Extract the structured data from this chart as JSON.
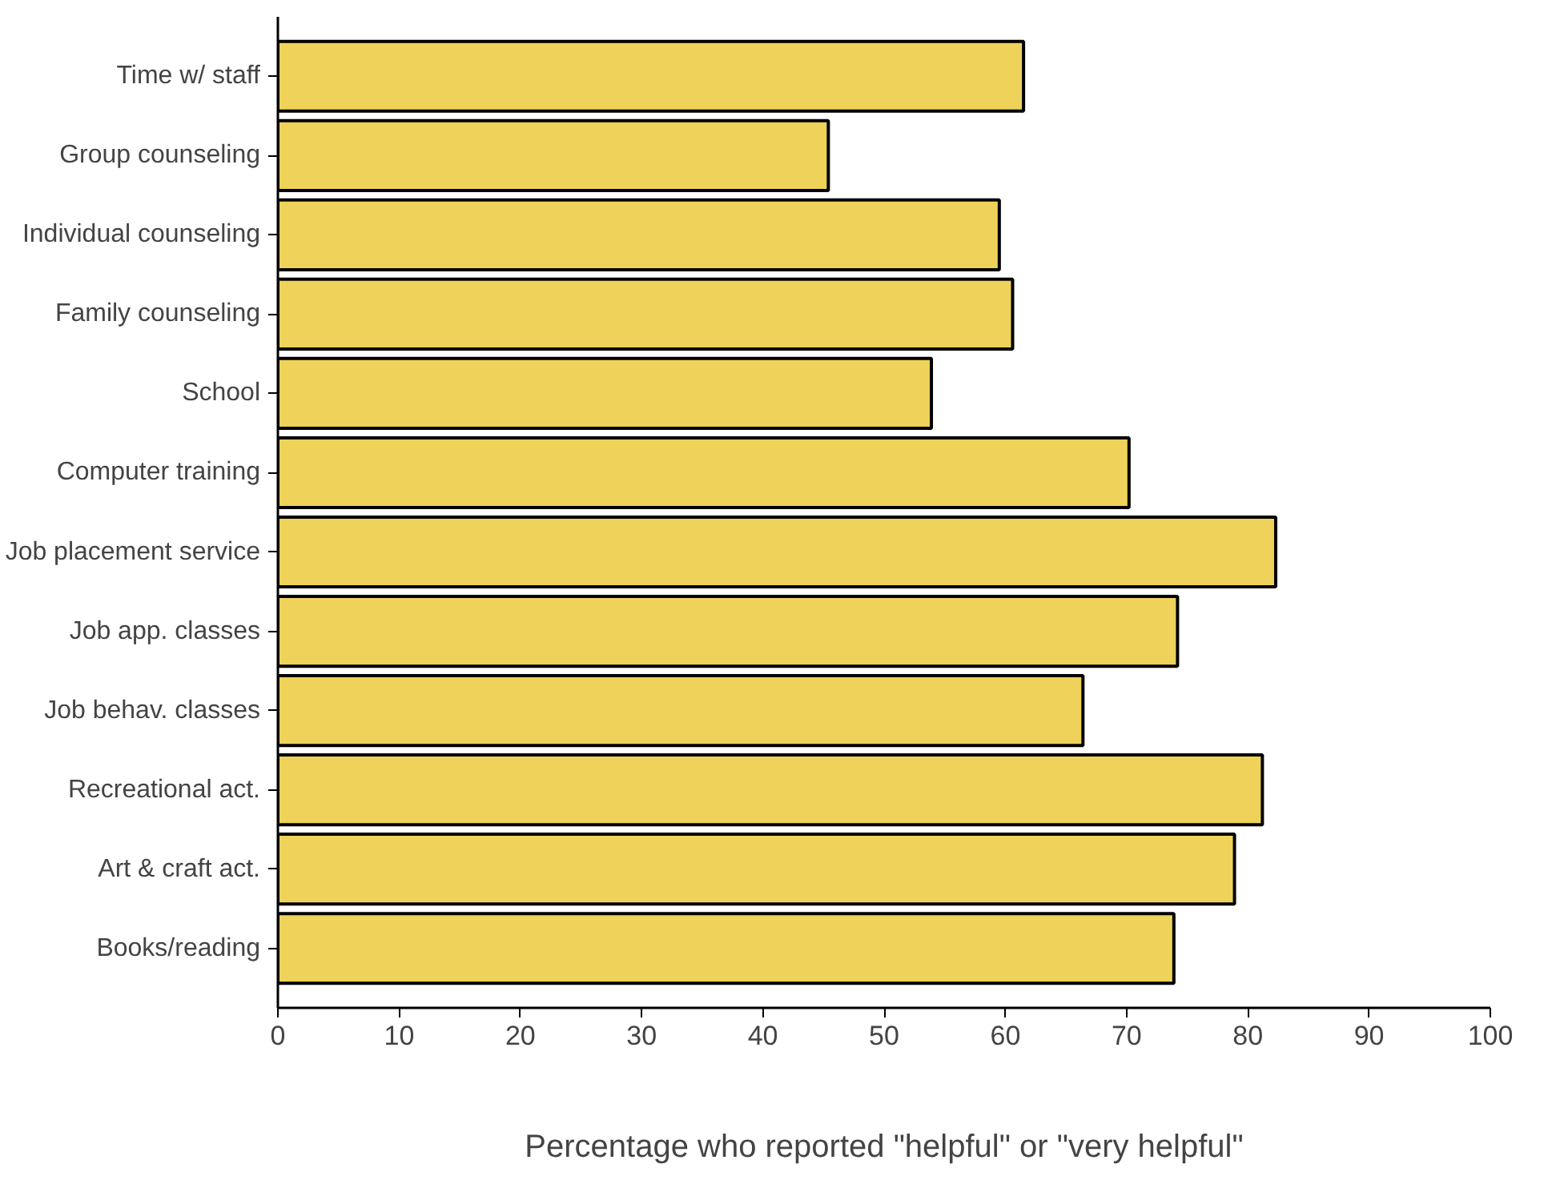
{
  "chart_data": {
    "type": "bar",
    "orientation": "horizontal",
    "xlabel": "Percentage who reported \"helpful\" or \"very helpful\"",
    "categories": [
      "Time w/ staff",
      "Group counseling",
      "Individual counseling",
      "Family counseling",
      "School",
      "Computer training",
      "Job placement service",
      "Job app. classes",
      "Job behav. classes",
      "Recreational act.",
      "Art & craft act.",
      "Books/reading"
    ],
    "values": [
      61.5,
      45.4,
      59.5,
      60.6,
      53.9,
      70.2,
      82.3,
      74.2,
      66.4,
      81.2,
      78.9,
      73.9
    ],
    "color": "#eed25a",
    "xlim": [
      0,
      100
    ],
    "xticks": [
      0,
      10,
      20,
      30,
      40,
      50,
      60,
      70,
      80,
      90,
      100
    ],
    "grid": false
  }
}
